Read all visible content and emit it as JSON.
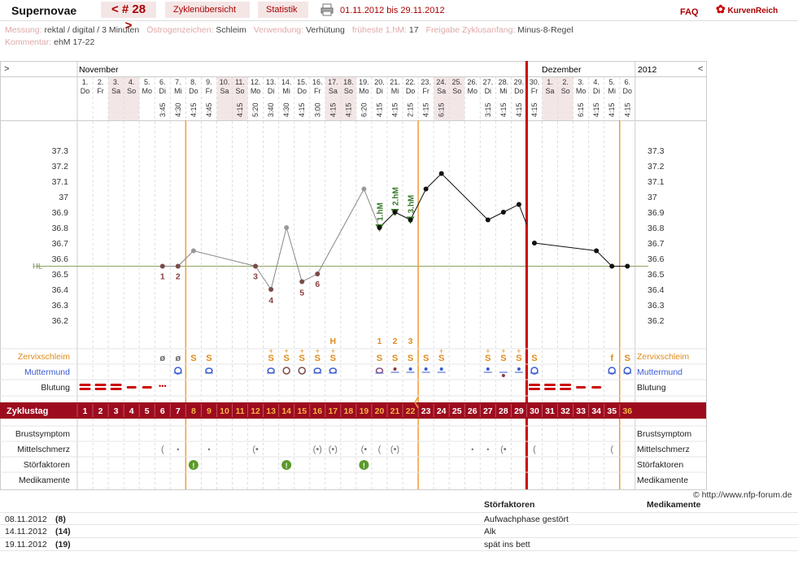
{
  "header": {
    "title": "Supernovae",
    "cycle": "< # 28 >",
    "overview": "Zyklenübersicht",
    "stats": "Statistik",
    "range": "01.11.2012 bis 29.11.2012",
    "faq": "FAQ",
    "logo": "KurvenReich"
  },
  "meta": {
    "line1": [
      {
        "k": "Messung:",
        "v": "rektal / digital / 3 Minuten"
      },
      {
        "k": "Östrogenzeichen:",
        "v": "Schleim"
      },
      {
        "k": "Verwendung:",
        "v": "Verhütung"
      },
      {
        "k": "früheste 1.hM:",
        "v": "17"
      },
      {
        "k": "Freigabe Zyklusanfang:",
        "v": "Minus-8-Regel"
      }
    ],
    "line2": [
      {
        "k": "Kommentar:",
        "v": "ehM 17-22"
      }
    ]
  },
  "calendar": {
    "left_nav": ">",
    "right_nav": "<",
    "month1": "November",
    "month2": "Dezember",
    "year": "2012",
    "days": [
      {
        "d": "1.",
        "w": "Do",
        "t": ""
      },
      {
        "d": "2.",
        "w": "Fr",
        "t": ""
      },
      {
        "d": "3.",
        "w": "Sa",
        "t": ""
      },
      {
        "d": "4.",
        "w": "So",
        "t": ""
      },
      {
        "d": "5.",
        "w": "Mo",
        "t": ""
      },
      {
        "d": "6.",
        "w": "Di",
        "t": "3:45"
      },
      {
        "d": "7.",
        "w": "Mi",
        "t": "4:30"
      },
      {
        "d": "8.",
        "w": "Do",
        "t": "4:15"
      },
      {
        "d": "9.",
        "w": "Fr",
        "t": "4:45"
      },
      {
        "d": "10.",
        "w": "Sa",
        "t": ""
      },
      {
        "d": "11.",
        "w": "So",
        "t": "4:15"
      },
      {
        "d": "12.",
        "w": "Mo",
        "t": "5:20"
      },
      {
        "d": "13.",
        "w": "Di",
        "t": "3:40"
      },
      {
        "d": "14.",
        "w": "Mi",
        "t": "4:30"
      },
      {
        "d": "15.",
        "w": "Do",
        "t": "4:15"
      },
      {
        "d": "16.",
        "w": "Fr",
        "t": "3:00"
      },
      {
        "d": "17.",
        "w": "Sa",
        "t": "4:15"
      },
      {
        "d": "18.",
        "w": "So",
        "t": "4:15"
      },
      {
        "d": "19.",
        "w": "Mo",
        "t": "6:20"
      },
      {
        "d": "20.",
        "w": "Di",
        "t": "4:15"
      },
      {
        "d": "21.",
        "w": "Mi",
        "t": "4:15"
      },
      {
        "d": "22.",
        "w": "Do",
        "t": "2:15"
      },
      {
        "d": "23.",
        "w": "Fr",
        "t": "4:15"
      },
      {
        "d": "24.",
        "w": "Sa",
        "t": "6:15"
      },
      {
        "d": "25.",
        "w": "So",
        "t": ""
      },
      {
        "d": "26.",
        "w": "Mo",
        "t": ""
      },
      {
        "d": "27.",
        "w": "Di",
        "t": "3:15"
      },
      {
        "d": "28.",
        "w": "Mi",
        "t": "4:15"
      },
      {
        "d": "29.",
        "w": "Do",
        "t": "4:15"
      },
      {
        "d": "30.",
        "w": "Fr",
        "t": "4:15"
      },
      {
        "d": "1.",
        "w": "Sa",
        "t": ""
      },
      {
        "d": "2.",
        "w": "So",
        "t": ""
      },
      {
        "d": "3.",
        "w": "Mo",
        "t": "6:15"
      },
      {
        "d": "4.",
        "w": "Di",
        "t": "4:15"
      },
      {
        "d": "5.",
        "w": "Mi",
        "t": "4:15"
      },
      {
        "d": "6.",
        "w": "Do",
        "t": "4:15"
      }
    ],
    "weekend_indices": [
      2,
      3,
      9,
      10,
      16,
      17,
      23,
      24,
      30,
      31
    ]
  },
  "chart_data": {
    "type": "line",
    "y_ticks": [
      "37.3",
      "37.2",
      "37.1",
      "37",
      "36.9",
      "36.8",
      "36.7",
      "36.6",
      "36.5",
      "36.4",
      "36.3",
      "36.2"
    ],
    "ylim": [
      36.2,
      37.3
    ],
    "hl_label": "HL",
    "hl_value": 36.55,
    "series": [
      {
        "values": [
          [
            6,
            36.55
          ],
          [
            7,
            36.55
          ],
          [
            8,
            36.65
          ],
          [
            12,
            36.55
          ],
          [
            13,
            36.4
          ],
          [
            14,
            36.8
          ],
          [
            15,
            36.45
          ],
          [
            16,
            36.5
          ],
          [
            19,
            37.05
          ],
          [
            20,
            36.8
          ],
          [
            21,
            36.9
          ],
          [
            22,
            36.85
          ],
          [
            23,
            37.05
          ],
          [
            24,
            37.15
          ],
          [
            27,
            36.85
          ],
          [
            28,
            36.9
          ],
          [
            29,
            36.95
          ],
          [
            30,
            36.7
          ],
          [
            34,
            36.65
          ],
          [
            35,
            36.55
          ],
          [
            36,
            36.55
          ]
        ]
      }
    ],
    "low_labels": [
      {
        "x": 6,
        "t": "1"
      },
      {
        "x": 7,
        "t": "2"
      },
      {
        "x": 12,
        "t": "3"
      },
      {
        "x": 13,
        "t": "4"
      },
      {
        "x": 15,
        "t": "5"
      },
      {
        "x": 16,
        "t": "6"
      }
    ],
    "hm_labels": [
      {
        "x": 20,
        "t": "1.hM"
      },
      {
        "x": 21,
        "t": "2.hM"
      },
      {
        "x": 22,
        "t": "3.hM"
      }
    ],
    "count_labels": [
      {
        "x": 17,
        "t": "H"
      },
      {
        "x": 20,
        "t": "1"
      },
      {
        "x": 21,
        "t": "2"
      },
      {
        "x": 22,
        "t": "3"
      }
    ]
  },
  "rows": {
    "zervix": "Zervixschleim",
    "muttermund": "Muttermund",
    "blutung": "Blutung",
    "zyklustag": "Zyklustag",
    "brust": "Brustsymptom",
    "mittel": "Mittelschmerz",
    "stoer": "Störfaktoren",
    "medi": "Medikamente"
  },
  "zervix_marks": [
    {
      "x": 6,
      "t": "ø"
    },
    {
      "x": 7,
      "t": "ø"
    },
    {
      "x": 8,
      "t": "S"
    },
    {
      "x": 9,
      "t": "S"
    },
    {
      "x": 13,
      "t": "S"
    },
    {
      "x": 14,
      "t": "S"
    },
    {
      "x": 15,
      "t": "S"
    },
    {
      "x": 16,
      "t": "S"
    },
    {
      "x": 17,
      "t": "S"
    },
    {
      "x": 20,
      "t": "S"
    },
    {
      "x": 21,
      "t": "S"
    },
    {
      "x": 22,
      "t": "S"
    },
    {
      "x": 23,
      "t": "S"
    },
    {
      "x": 24,
      "t": "S"
    },
    {
      "x": 27,
      "t": "S"
    },
    {
      "x": 28,
      "t": "S"
    },
    {
      "x": 29,
      "t": "S"
    },
    {
      "x": 30,
      "t": "S"
    },
    {
      "x": 35,
      "t": "f"
    },
    {
      "x": 36,
      "t": "S"
    }
  ],
  "cycle_days": [
    "1",
    "2",
    "3",
    "4",
    "5",
    "6",
    "7",
    "8",
    "9",
    "10",
    "11",
    "12",
    "13",
    "14",
    "15",
    "16",
    "17",
    "18",
    "19",
    "20",
    "21",
    "22",
    "23",
    "24",
    "25",
    "26",
    "27",
    "28",
    "29",
    "30",
    "31",
    "32",
    "33",
    "34",
    "35",
    "36"
  ],
  "notes": {
    "copyright": "© http://www.nfp-forum.de",
    "col1": "Störfaktoren",
    "col2": "Medikamente",
    "entries": [
      {
        "date": "08.11.2012",
        "day": "(8)",
        "text": "Aufwachphase gestört"
      },
      {
        "date": "14.11.2012",
        "day": "(14)",
        "text": "Alk"
      },
      {
        "date": "19.11.2012",
        "day": "(19)",
        "text": "spät ins bett"
      }
    ]
  }
}
